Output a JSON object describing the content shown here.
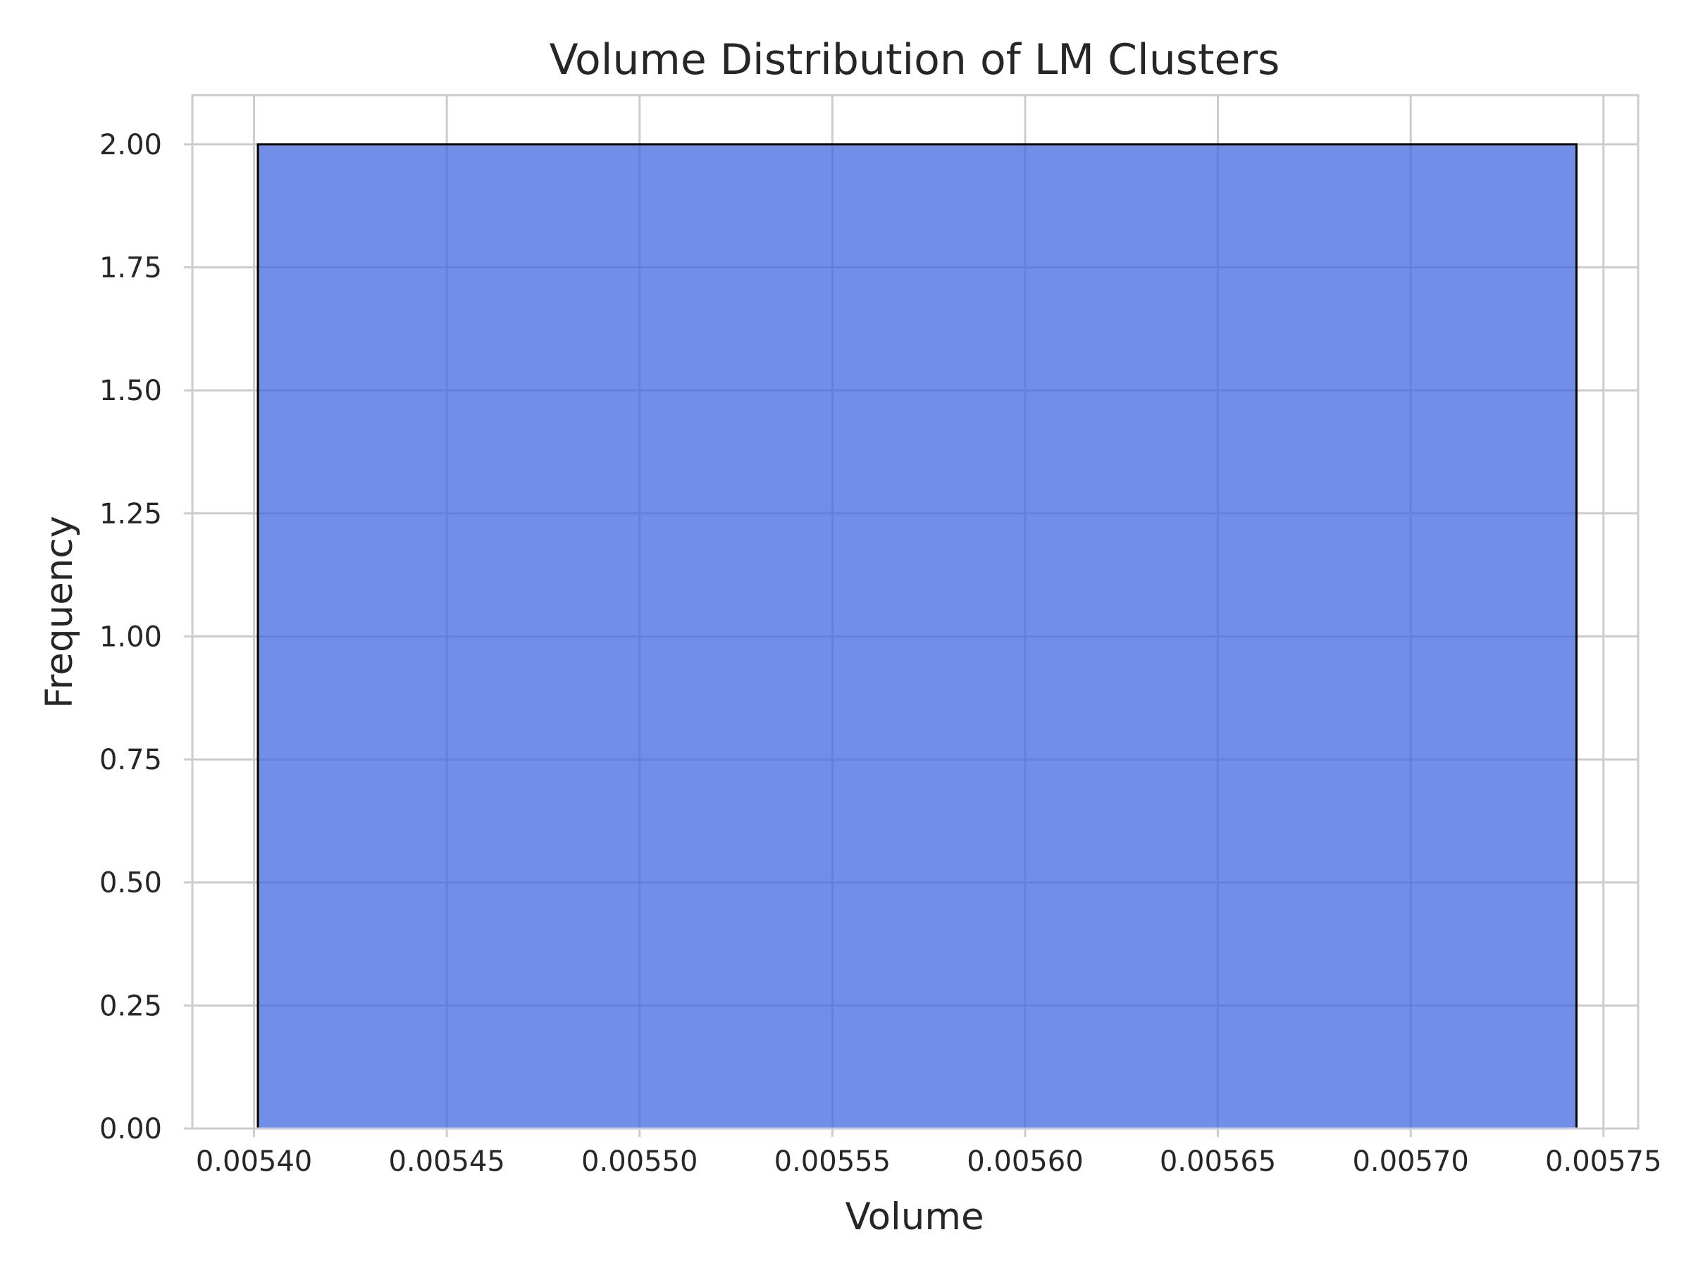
{
  "chart_data": {
    "type": "bar",
    "title": "Volume Distribution of LM Clusters",
    "xlabel": "Volume",
    "ylabel": "Frequency",
    "xlim": [
      0.005384,
      0.005759
    ],
    "ylim": [
      0,
      2.1
    ],
    "x_ticks": [
      0.0054,
      0.00545,
      0.0055,
      0.00555,
      0.0056,
      0.00565,
      0.0057,
      0.00575
    ],
    "x_tick_labels": [
      "0.00540",
      "0.00545",
      "0.00550",
      "0.00555",
      "0.00560",
      "0.00565",
      "0.00570",
      "0.00575"
    ],
    "y_ticks": [
      0,
      0.25,
      0.5,
      0.75,
      1.0,
      1.25,
      1.5,
      1.75,
      2.0
    ],
    "y_tick_labels": [
      "0.00",
      "0.25",
      "0.50",
      "0.75",
      "1.00",
      "1.25",
      "1.50",
      "1.75",
      "2.00"
    ],
    "bins": [
      {
        "x0": 0.005401,
        "x1": 0.005743,
        "count": 2
      }
    ],
    "grid": true,
    "bar_color": "#4169e1",
    "bar_opacity": 0.75,
    "bar_edge_color": "#000000"
  }
}
